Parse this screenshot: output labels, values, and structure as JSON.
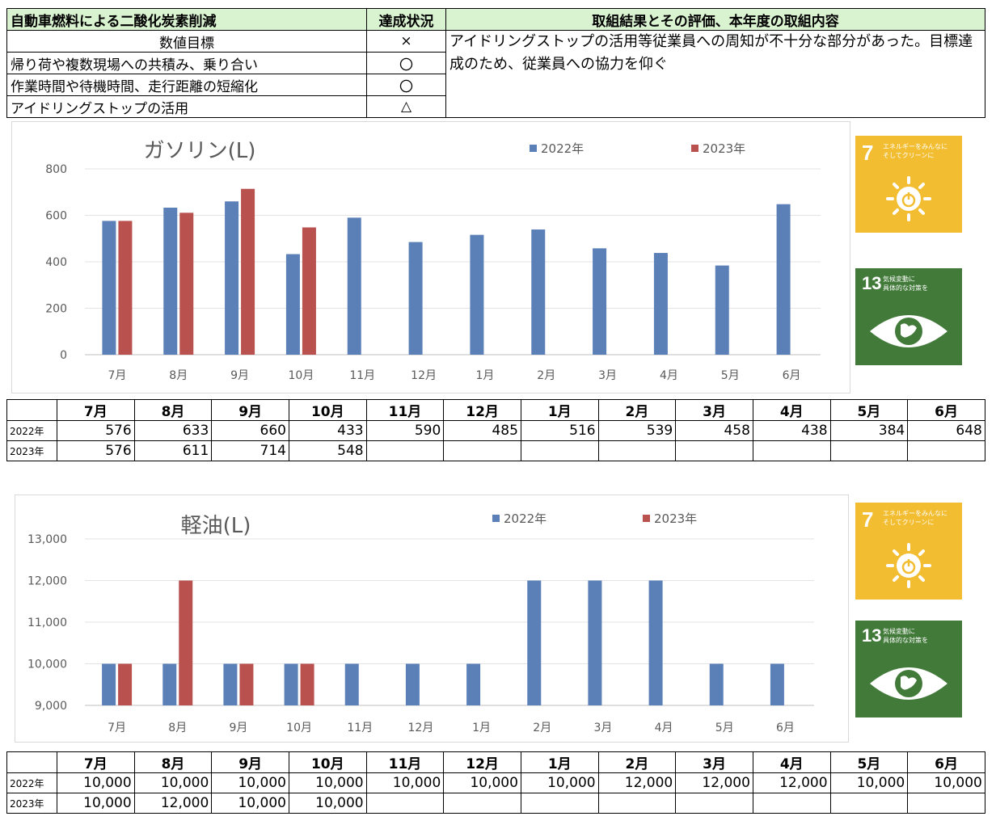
{
  "status_table": {
    "title": "自動車燃料による二酸化炭素削減",
    "status_header": "達成状況",
    "result_header": "取組結果とその評価、本年度の取組内容",
    "rows": [
      {
        "label": "数値目標",
        "mark": "×"
      },
      {
        "label": "帰り荷や複数現場への共積み、乗り合い",
        "mark": "〇"
      },
      {
        "label": "作業時間や待機時間、走行距離の短縮化",
        "mark": "〇"
      },
      {
        "label": "アイドリングストップの活用",
        "mark": "△"
      }
    ],
    "comment": "アイドリングストップの活用等従業員への周知が不十分な部分があった。目標達成のため、従業員への協力を仰ぐ"
  },
  "colors": {
    "series_2022": "#5b80b8",
    "series_2023": "#b9524f",
    "header_bg": "#d9f2d0"
  },
  "chart_data": [
    {
      "type": "bar",
      "title": "ガソリン(L)",
      "categories": [
        "7月",
        "8月",
        "9月",
        "10月",
        "11月",
        "12月",
        "1月",
        "2月",
        "3月",
        "4月",
        "5月",
        "6月"
      ],
      "series": [
        {
          "name": "2022年",
          "values": [
            576,
            633,
            660,
            433,
            590,
            485,
            516,
            539,
            458,
            438,
            384,
            648
          ]
        },
        {
          "name": "2023年",
          "values": [
            576,
            611,
            714,
            548,
            null,
            null,
            null,
            null,
            null,
            null,
            null,
            null
          ]
        }
      ],
      "ylim": [
        0,
        800
      ],
      "yticks": [
        "0",
        "200",
        "400",
        "600",
        "800"
      ],
      "legend": "top-right",
      "grid": true
    },
    {
      "type": "bar",
      "title": "軽油(L)",
      "categories": [
        "7月",
        "8月",
        "9月",
        "10月",
        "11月",
        "12月",
        "1月",
        "2月",
        "3月",
        "4月",
        "5月",
        "6月"
      ],
      "series": [
        {
          "name": "2022年",
          "values": [
            10000,
            10000,
            10000,
            10000,
            10000,
            10000,
            10000,
            12000,
            12000,
            12000,
            10000,
            10000
          ]
        },
        {
          "name": "2023年",
          "values": [
            10000,
            12000,
            10000,
            10000,
            null,
            null,
            null,
            null,
            null,
            null,
            null,
            null
          ]
        }
      ],
      "ylim": [
        9000,
        13000
      ],
      "yticks": [
        "9,000",
        "10,000",
        "11,000",
        "12,000",
        "13,000"
      ],
      "legend": "top-right",
      "grid": true
    }
  ],
  "tables": [
    {
      "months": [
        "7月",
        "8月",
        "9月",
        "10月",
        "11月",
        "12月",
        "1月",
        "2月",
        "3月",
        "4月",
        "5月",
        "6月"
      ],
      "rows": [
        {
          "year": "2022年",
          "values": [
            "576",
            "633",
            "660",
            "433",
            "590",
            "485",
            "516",
            "539",
            "458",
            "438",
            "384",
            "648"
          ]
        },
        {
          "year": "2023年",
          "values": [
            "576",
            "611",
            "714",
            "548",
            "",
            "",
            "",
            "",
            "",
            "",
            "",
            ""
          ]
        }
      ]
    },
    {
      "months": [
        "7月",
        "8月",
        "9月",
        "10月",
        "11月",
        "12月",
        "1月",
        "2月",
        "3月",
        "4月",
        "5月",
        "6月"
      ],
      "rows": [
        {
          "year": "2022年",
          "values": [
            "10,000",
            "10,000",
            "10,000",
            "10,000",
            "10,000",
            "10,000",
            "10,000",
            "12,000",
            "12,000",
            "12,000",
            "10,000",
            "10,000"
          ]
        },
        {
          "year": "2023年",
          "values": [
            "10,000",
            "12,000",
            "10,000",
            "10,000",
            "",
            "",
            "",
            "",
            "",
            "",
            "",
            ""
          ]
        }
      ]
    }
  ],
  "sdg_icons": [
    {
      "number": "7",
      "text": "エネルギーをみんなに\nそしてクリーンに",
      "icon": "sun-power-icon"
    },
    {
      "number": "13",
      "text": "気候変動に\n具体的な対策を",
      "icon": "earth-eye-icon"
    }
  ]
}
